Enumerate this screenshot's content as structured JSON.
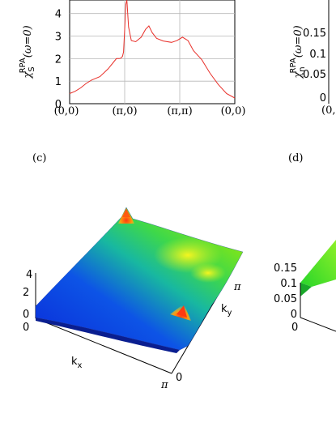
{
  "chart_data": [
    {
      "panel": "top-left",
      "type": "line",
      "ylabel": "χ_S^RPA(ω=0)",
      "ylabel_parts": {
        "chi": "χ",
        "sub": "S",
        "sup": "RPA",
        "arg": "(ω=0)"
      },
      "yticks": [
        "0",
        "1",
        "2",
        "3",
        "4"
      ],
      "ylim": [
        0,
        4.6
      ],
      "xticks": [
        "(0,0)",
        "(π,0)",
        "(π,π)",
        "(0,0)"
      ],
      "xlim": [
        0,
        3
      ],
      "grid": true,
      "color": "#e8302a",
      "x": [
        0.0,
        0.1,
        0.2,
        0.3,
        0.4,
        0.55,
        0.7,
        0.8,
        0.85,
        0.9,
        0.93,
        0.96,
        0.98,
        1.0,
        1.02,
        1.04,
        1.07,
        1.12,
        1.2,
        1.3,
        1.38,
        1.44,
        1.5,
        1.58,
        1.7,
        1.85,
        1.95,
        2.05,
        2.15,
        2.25,
        2.4,
        2.55,
        2.7,
        2.85,
        3.0
      ],
      "y": [
        0.45,
        0.55,
        0.7,
        0.9,
        1.05,
        1.2,
        1.55,
        1.85,
        2.0,
        2.0,
        2.02,
        2.1,
        2.3,
        3.3,
        4.4,
        4.9,
        3.4,
        2.8,
        2.75,
        2.95,
        3.3,
        3.45,
        3.15,
        2.9,
        2.78,
        2.72,
        2.8,
        2.95,
        2.8,
        2.35,
        1.95,
        1.35,
        0.85,
        0.45,
        0.25
      ]
    },
    {
      "panel": "top-right",
      "type": "line",
      "ylabel": "χ_n^RPA(ω=0)",
      "ylabel_parts": {
        "chi": "χ",
        "sub": "n",
        "sup": "RPA",
        "arg": "(ω=0)"
      },
      "yticks": [
        "0",
        "0.05",
        "0.1",
        "0.15"
      ],
      "xtick_partial": "(0,"
    },
    {
      "panel": "c",
      "type": "surface",
      "zticks": [
        "0",
        "2",
        "4"
      ],
      "kx_label": "k",
      "kx_sub": "x",
      "ky_label": "k",
      "ky_sub": "y",
      "axis_ticks": {
        "origin": "0",
        "kx_end": "π",
        "ky_end": "π",
        "ky_origin": "0"
      }
    },
    {
      "panel": "d",
      "type": "surface",
      "zticks": [
        "0",
        "0.05",
        "0.1",
        "0.15"
      ],
      "axis_ticks": {
        "origin": "0"
      }
    }
  ],
  "panel_labels": {
    "c": "(c)",
    "d": "(d)"
  }
}
